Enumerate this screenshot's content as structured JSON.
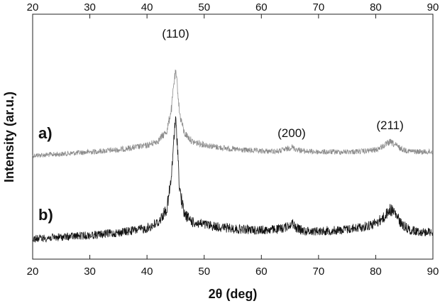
{
  "chart_data": {
    "type": "line",
    "title": "",
    "xlabel": "2θ (deg)",
    "ylabel": "Intensity (ar.u.)",
    "xlim": [
      20,
      90
    ],
    "x_ticks": [
      "20",
      "30",
      "40",
      "50",
      "60",
      "70",
      "80",
      "90"
    ],
    "top_axis_ticks": [
      "20",
      "30",
      "40",
      "50",
      "60",
      "70",
      "80",
      "90"
    ],
    "y_ticks_shown": false,
    "grid": false,
    "legend": "none",
    "series": [
      {
        "name": "a)",
        "color": "#8c8c8c",
        "x": [
          20,
          25,
          30,
          35,
          40,
          42,
          43.5,
          44.3,
          44.7,
          45.0,
          45.3,
          45.7,
          46.5,
          48,
          52,
          56,
          60,
          63,
          64.5,
          65.3,
          66,
          67.5,
          70,
          74,
          78,
          80,
          81.5,
          82.5,
          83.2,
          84.5,
          86,
          88,
          90
        ],
        "y": [
          0.03,
          0.05,
          0.08,
          0.11,
          0.17,
          0.24,
          0.38,
          0.7,
          1.05,
          1.2,
          1.02,
          0.62,
          0.35,
          0.22,
          0.15,
          0.11,
          0.09,
          0.09,
          0.12,
          0.15,
          0.12,
          0.09,
          0.08,
          0.08,
          0.09,
          0.11,
          0.17,
          0.22,
          0.19,
          0.12,
          0.09,
          0.08,
          0.08
        ]
      },
      {
        "name": "b)",
        "color": "#111111",
        "x": [
          20,
          25,
          30,
          35,
          40,
          42,
          43.5,
          44.3,
          44.7,
          45.0,
          45.3,
          45.7,
          46.5,
          48,
          52,
          56,
          60,
          63,
          64.5,
          65.3,
          66,
          67.5,
          70,
          74,
          78,
          80,
          81.5,
          82.5,
          83.2,
          84.5,
          86,
          88,
          90
        ],
        "y": [
          0.03,
          0.05,
          0.07,
          0.1,
          0.15,
          0.22,
          0.38,
          0.75,
          1.2,
          1.4,
          1.15,
          0.6,
          0.32,
          0.22,
          0.17,
          0.14,
          0.13,
          0.14,
          0.17,
          0.22,
          0.16,
          0.12,
          0.12,
          0.13,
          0.17,
          0.21,
          0.28,
          0.37,
          0.34,
          0.2,
          0.13,
          0.11,
          0.11
        ]
      }
    ],
    "peak_labels": [
      {
        "text": "(110)",
        "x": 45.0
      },
      {
        "text": "(200)",
        "x": 65.3
      },
      {
        "text": "(211)",
        "x": 82.5
      }
    ]
  }
}
